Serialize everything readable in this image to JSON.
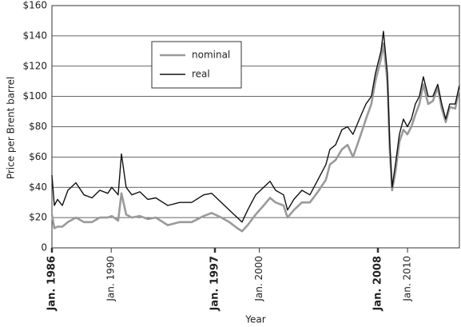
{
  "chart_data": {
    "type": "line",
    "x_label": "Year",
    "y_label": "Price per Brent barrel",
    "x": [
      1986.0,
      1986.16,
      1986.38,
      1986.7,
      1987.08,
      1987.62,
      1988.16,
      1988.7,
      1989.23,
      1989.77,
      1990.04,
      1990.47,
      1990.69,
      1991.01,
      1991.39,
      1991.93,
      1992.47,
      1993.01,
      1993.82,
      1994.63,
      1995.43,
      1996.24,
      1996.78,
      1997.43,
      1997.97,
      1998.51,
      1998.83,
      1999.21,
      1999.75,
      2000.29,
      2000.72,
      2001.09,
      2001.63,
      2001.9,
      2002.33,
      2002.87,
      2003.41,
      2003.95,
      2004.49,
      2004.76,
      2005.14,
      2005.57,
      2005.95,
      2006.32,
      2006.75,
      2007.19,
      2007.56,
      2007.83,
      2008.21,
      2008.37,
      2008.64,
      2008.8,
      2008.96,
      2009.18,
      2009.45,
      2009.72,
      2009.99,
      2010.26,
      2010.53,
      2010.8,
      2011.07,
      2011.39,
      2011.71,
      2012.04,
      2012.31,
      2012.58,
      2012.85,
      2013.22,
      2013.49
    ],
    "series": [
      {
        "name": "nominal",
        "color": "#9a9a9a",
        "values": [
          22,
          13,
          14,
          14,
          17,
          20,
          17,
          17,
          20,
          20,
          21,
          18,
          36,
          22,
          20,
          21,
          19,
          20,
          15,
          17,
          17,
          21,
          23,
          20,
          17,
          13,
          11,
          15,
          22,
          28,
          33,
          30,
          28,
          20,
          25,
          30,
          30,
          37,
          45,
          55,
          58,
          65,
          68,
          60,
          72,
          85,
          95,
          110,
          125,
          135,
          110,
          65,
          38,
          50,
          70,
          78,
          75,
          80,
          88,
          95,
          108,
          95,
          97,
          106,
          92,
          83,
          93,
          92,
          105
        ]
      },
      {
        "name": "real",
        "color": "#111111",
        "values": [
          48,
          28,
          32,
          28,
          38,
          43,
          35,
          33,
          38,
          36,
          40,
          35,
          62,
          40,
          35,
          37,
          32,
          33,
          28,
          30,
          30,
          35,
          36,
          30,
          25,
          20,
          17,
          25,
          35,
          40,
          44,
          38,
          35,
          25,
          32,
          38,
          35,
          45,
          55,
          65,
          68,
          78,
          80,
          75,
          85,
          95,
          100,
          115,
          130,
          143,
          115,
          70,
          40,
          55,
          75,
          85,
          80,
          85,
          95,
          100,
          113,
          100,
          100,
          108,
          95,
          85,
          95,
          95,
          107
        ]
      }
    ],
    "xlim": [
      1986,
      2013.5
    ],
    "xticks": [
      {
        "value": 1986,
        "label": "Jan. 1986",
        "bold": true
      },
      {
        "value": 1990,
        "label": "Jan. 1990"
      },
      {
        "value": 1997,
        "label": "Jan. 1997",
        "bold": true
      },
      {
        "value": 2000,
        "label": "Jan. 2000"
      },
      {
        "value": 2008,
        "label": "Jan. 2008",
        "bold": true
      },
      {
        "value": 2010,
        "label": "Jan. 2010"
      }
    ],
    "ylim": [
      0,
      160
    ],
    "yticks": [
      {
        "value": 0,
        "label": "0"
      },
      {
        "value": 20,
        "label": "$20"
      },
      {
        "value": 40,
        "label": "$40"
      },
      {
        "value": 60,
        "label": "$60"
      },
      {
        "value": 80,
        "label": "$80"
      },
      {
        "value": 100,
        "label": "$100"
      },
      {
        "value": 120,
        "label": "$120"
      },
      {
        "value": 140,
        "label": "$140"
      },
      {
        "value": 160,
        "label": "$160"
      }
    ],
    "grid": true
  }
}
